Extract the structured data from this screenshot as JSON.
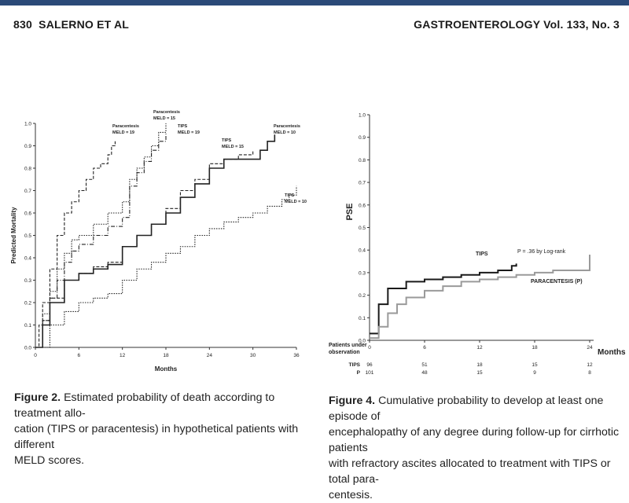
{
  "header": {
    "page_number": "830",
    "authors": "SALERNO ET AL",
    "journal": "GASTROENTEROLOGY Vol. 133, No. 3"
  },
  "figure2": {
    "caption_label": "Figure 2.",
    "caption_text": "Estimated probability of death according to treatment allocation (TIPS or paracentesis) in hypothetical patients with different MELD scores.",
    "caption_lines": [
      "Estimated probability of death according to treatment allo-",
      "cation (TIPS or paracentesis) in hypothetical patients with different",
      "MELD scores."
    ]
  },
  "figure4": {
    "caption_label": "Figure 4.",
    "caption_text": "Cumulative probability to develop at least one episode of encephalopathy of any degree during follow-up for cirrhotic patients with refractory ascites allocated to treatment with TIPS or total paracentesis.",
    "caption_lines": [
      "Cumulative probability to develop at least one episode of",
      "encephalopathy of any degree during follow-up for cirrhotic patients",
      "with refractory ascites allocated to treatment with TIPS or total para-",
      "centesis."
    ],
    "risk_table": {
      "header_line1": "Patients under",
      "header_line2": "observation",
      "rows": [
        {
          "label": "TIPS",
          "values": [
            "96",
            "51",
            "18",
            "15",
            "12"
          ]
        },
        {
          "label": "P",
          "values": [
            "101",
            "48",
            "15",
            "9",
            "8"
          ]
        }
      ]
    }
  },
  "chart_data": [
    {
      "type": "line",
      "title": "",
      "xlabel": "Months",
      "ylabel": "Predicted Mortality",
      "xlim": [
        0,
        36
      ],
      "ylim": [
        0,
        1.0
      ],
      "x_ticks": [
        "0",
        "6",
        "12",
        "18",
        "24",
        "30",
        "36"
      ],
      "y_ticks": [
        "0.0",
        "0.1",
        "0.2",
        "0.3",
        "0.4",
        "0.5",
        "0.6",
        "0.7",
        "0.8",
        "0.9",
        "1.0"
      ],
      "series": [
        {
          "name": "Paracentesis MELD = 19",
          "style": "dashed",
          "x": [
            0,
            0.5,
            1,
            2,
            3,
            4,
            5,
            6,
            7,
            8,
            9,
            10,
            10.5,
            11
          ],
          "y": [
            0,
            0.1,
            0.2,
            0.35,
            0.5,
            0.6,
            0.65,
            0.7,
            0.75,
            0.8,
            0.82,
            0.86,
            0.9,
            0.92
          ]
        },
        {
          "name": "Paracentesis MELD = 15",
          "style": "dotted",
          "x": [
            0,
            1,
            2,
            3,
            4,
            5,
            6,
            8,
            10,
            12,
            13,
            14,
            15,
            16,
            17,
            18
          ],
          "y": [
            0,
            0.15,
            0.25,
            0.35,
            0.42,
            0.48,
            0.5,
            0.55,
            0.6,
            0.65,
            0.75,
            0.8,
            0.85,
            0.9,
            0.96,
            1.0
          ]
        },
        {
          "name": "TIPS MELD = 19",
          "style": "dashdot",
          "x": [
            0,
            1,
            2,
            3,
            4,
            5,
            6,
            8,
            10,
            12,
            13,
            14,
            15,
            16,
            17,
            18
          ],
          "y": [
            0,
            0.12,
            0.22,
            0.3,
            0.38,
            0.43,
            0.46,
            0.5,
            0.54,
            0.58,
            0.72,
            0.78,
            0.83,
            0.88,
            0.92,
            0.96
          ]
        },
        {
          "name": "TIPS MELD = 15",
          "style": "dashed",
          "x": [
            0,
            1,
            2,
            4,
            6,
            8,
            10,
            12,
            14,
            16,
            18,
            20,
            22,
            24,
            26,
            28,
            30
          ],
          "y": [
            0,
            0.12,
            0.22,
            0.3,
            0.33,
            0.36,
            0.38,
            0.45,
            0.5,
            0.55,
            0.62,
            0.7,
            0.75,
            0.82,
            0.84,
            0.86,
            0.88
          ]
        },
        {
          "name": "Paracentesis MELD = 10",
          "style": "solid",
          "x": [
            0,
            1,
            2,
            4,
            6,
            8,
            10,
            12,
            14,
            16,
            18,
            20,
            22,
            24,
            26,
            28,
            30,
            31,
            32,
            33
          ],
          "y": [
            0,
            0.1,
            0.2,
            0.3,
            0.33,
            0.35,
            0.37,
            0.45,
            0.5,
            0.55,
            0.6,
            0.67,
            0.73,
            0.8,
            0.84,
            0.84,
            0.84,
            0.88,
            0.92,
            0.95
          ]
        },
        {
          "name": "TIPS MELD = 10",
          "style": "dotted",
          "x": [
            0,
            2,
            4,
            6,
            8,
            10,
            12,
            14,
            16,
            18,
            20,
            22,
            24,
            26,
            28,
            30,
            32,
            34,
            35,
            36
          ],
          "y": [
            0,
            0.1,
            0.16,
            0.2,
            0.22,
            0.24,
            0.3,
            0.35,
            0.38,
            0.42,
            0.45,
            0.5,
            0.53,
            0.56,
            0.58,
            0.6,
            0.63,
            0.66,
            0.68,
            0.72
          ]
        }
      ]
    },
    {
      "type": "line",
      "title": "",
      "xlabel": "Months",
      "ylabel": "PSE",
      "xlim": [
        0,
        24
      ],
      "ylim": [
        0,
        1.0
      ],
      "x_ticks": [
        "0",
        "6",
        "12",
        "18",
        "24"
      ],
      "y_ticks": [
        "0.0",
        "0.1",
        "0.2",
        "0.3",
        "0.4",
        "0.5",
        "0.6",
        "0.7",
        "0.8",
        "0.9",
        "1.0"
      ],
      "annotation": "P = .36 by Log-rank",
      "series": [
        {
          "name": "TIPS",
          "color": "#1a1a1a",
          "x": [
            0,
            1,
            2,
            4,
            6,
            8,
            10,
            12,
            14,
            15.5,
            16
          ],
          "y": [
            0.03,
            0.16,
            0.23,
            0.26,
            0.27,
            0.28,
            0.29,
            0.3,
            0.31,
            0.33,
            0.34
          ]
        },
        {
          "name": "PARACENTESIS (P)",
          "color": "#9a9a9a",
          "x": [
            0,
            1,
            2,
            3,
            4,
            6,
            8,
            10,
            12,
            14,
            16,
            18,
            20,
            24,
            24
          ],
          "y": [
            0.01,
            0.06,
            0.12,
            0.16,
            0.19,
            0.22,
            0.24,
            0.26,
            0.27,
            0.28,
            0.29,
            0.3,
            0.31,
            0.32,
            0.38
          ]
        }
      ]
    }
  ]
}
